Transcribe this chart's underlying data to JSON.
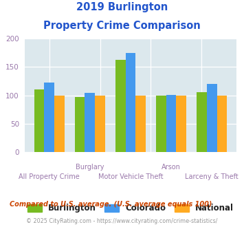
{
  "title_line1": "2019 Burlington",
  "title_line2": "Property Crime Comparison",
  "burlington": [
    111,
    97,
    163,
    100,
    105
  ],
  "colorado": [
    123,
    104,
    175,
    101,
    120
  ],
  "national": [
    100,
    100,
    100,
    100,
    100
  ],
  "burlington_color": "#77bb22",
  "colorado_color": "#4499ee",
  "national_color": "#ffaa22",
  "ylim": [
    0,
    200
  ],
  "yticks": [
    0,
    50,
    100,
    150,
    200
  ],
  "plot_bg": "#dce8ed",
  "legend_labels": [
    "Burlington",
    "Colorado",
    "National"
  ],
  "top_labels": [
    "",
    "Burglary",
    "",
    "Arson",
    ""
  ],
  "bottom_labels": [
    "All Property Crime",
    "",
    "Motor Vehicle Theft",
    "",
    "Larceny & Theft"
  ],
  "footnote1": "Compared to U.S. average. (U.S. average equals 100)",
  "footnote2": "© 2025 CityRating.com - https://www.cityrating.com/crime-statistics/",
  "title_color": "#2255cc",
  "footnote1_color": "#cc4400",
  "footnote2_color": "#999999",
  "tick_label_color": "#9977aa",
  "xlabel_color": "#9977aa"
}
